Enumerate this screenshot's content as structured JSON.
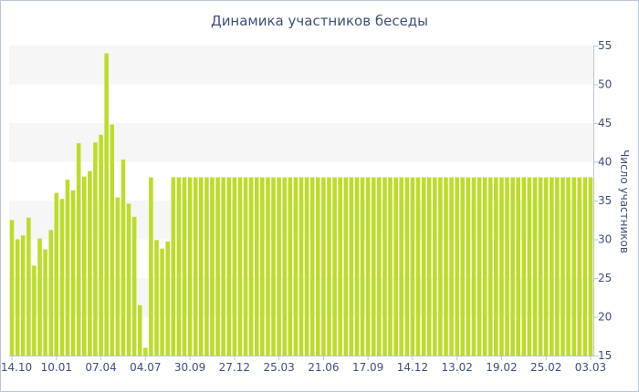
{
  "chart_data": {
    "type": "bar",
    "title": "Динамика участников беседы",
    "ylabel": "Число участников",
    "xlabel": "",
    "ylim": [
      15,
      55
    ],
    "yticks": [
      15,
      20,
      25,
      30,
      35,
      40,
      45,
      50,
      55
    ],
    "grid": "alternating horizontal bands",
    "bar_color": "#bbdd2a",
    "band_color": "#f6f6f6",
    "text_color": "#3e4f7a",
    "x_tick_labels": [
      {
        "index": 0,
        "label": "14.10"
      },
      {
        "index": 8,
        "label": "10.01"
      },
      {
        "index": 16,
        "label": "07.04"
      },
      {
        "index": 24,
        "label": "04.07"
      },
      {
        "index": 32,
        "label": "30.09"
      },
      {
        "index": 40,
        "label": "27.12"
      },
      {
        "index": 48,
        "label": "25.03"
      },
      {
        "index": 56,
        "label": "21.06"
      },
      {
        "index": 64,
        "label": "17.09"
      },
      {
        "index": 72,
        "label": "14.12"
      },
      {
        "index": 80,
        "label": "13.02"
      },
      {
        "index": 88,
        "label": "19.02"
      },
      {
        "index": 96,
        "label": "25.02"
      },
      {
        "index": 104,
        "label": "03.03"
      }
    ],
    "values": [
      32.5,
      30,
      30.5,
      32.8,
      26.6,
      30.1,
      28.7,
      31.2,
      36,
      35.2,
      37.7,
      36.3,
      42.4,
      38.1,
      38.8,
      42.5,
      43.5,
      54,
      44.8,
      35.4,
      40.3,
      34.6,
      32.9,
      21.5,
      16,
      38,
      29.9,
      28.8,
      29.7,
      38,
      38,
      38,
      38,
      38,
      38,
      38,
      38,
      38,
      38,
      38,
      38,
      38,
      38,
      38,
      38,
      38,
      38,
      38,
      38,
      38,
      38,
      38,
      38,
      38,
      38,
      38,
      38,
      38,
      38,
      38,
      38,
      38,
      38,
      38,
      38,
      38,
      38,
      38,
      38,
      38,
      38,
      38,
      38,
      38,
      38,
      38,
      38,
      38,
      38,
      38,
      38,
      38,
      38,
      38,
      38,
      38,
      38,
      38,
      38,
      38,
      38,
      38,
      38,
      38,
      38,
      38,
      38,
      38,
      38,
      38,
      38,
      38,
      38,
      38,
      38
    ]
  }
}
